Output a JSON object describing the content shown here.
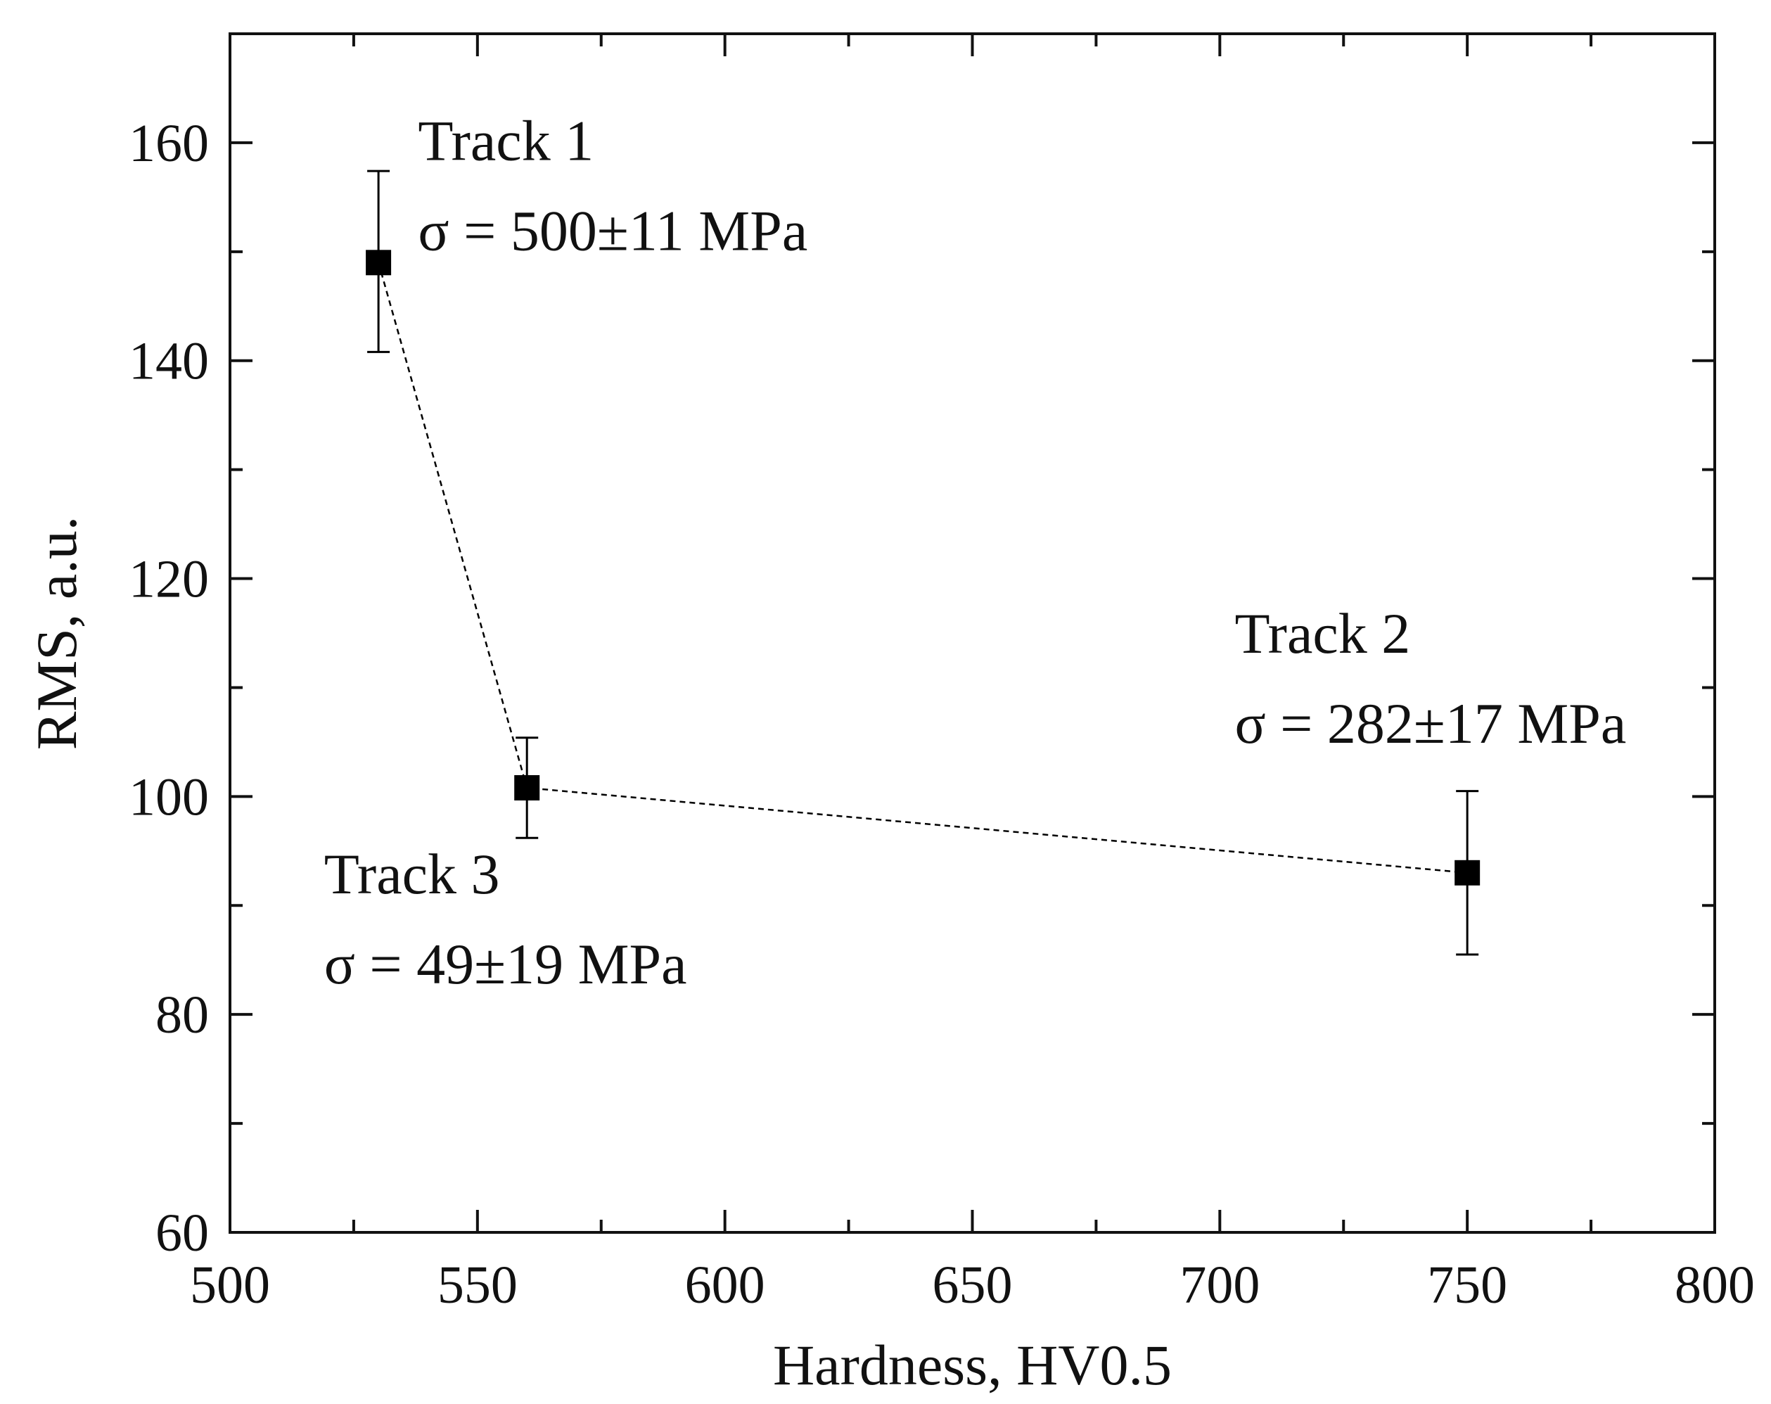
{
  "chart_data": {
    "type": "scatter",
    "title": "",
    "xlabel": "Hardness, HV0.5",
    "ylabel": "RMS, a.u.",
    "xlim": [
      500,
      800
    ],
    "ylim": [
      60,
      170
    ],
    "x_ticks": [
      500,
      550,
      600,
      650,
      700,
      750,
      800
    ],
    "y_ticks": [
      60,
      80,
      100,
      120,
      140,
      160
    ],
    "x_minor_ticks": [
      525,
      575,
      625,
      675,
      725,
      775
    ],
    "y_minor_ticks": [
      70,
      90,
      110,
      130,
      150
    ],
    "grid": false,
    "series": [
      {
        "name": "RMS",
        "marker": "square",
        "connect": "dashed",
        "points": [
          {
            "x": 530,
            "y": 149,
            "err_low": 140.8,
            "err_high": 157.4
          },
          {
            "x": 560,
            "y": 100.8,
            "err_low": 96.2,
            "err_high": 105.4
          },
          {
            "x": 750,
            "y": 93,
            "err_low": 85.5,
            "err_high": 100.5
          }
        ]
      }
    ],
    "annotations": [
      {
        "title": "Track 1",
        "sigma": "σ = 500±11 MPa",
        "x": 538,
        "y": 158.4
      },
      {
        "title": "Track 3",
        "sigma": "σ = 49±19 MPa",
        "x": 519,
        "y": 91.1
      },
      {
        "title": "Track 2",
        "sigma": "σ = 282±17 MPa",
        "x": 703,
        "y": 113.2
      }
    ]
  },
  "colors": {
    "axis": "#111111",
    "marker": "#000000",
    "line": "#000000",
    "background": "#ffffff"
  }
}
